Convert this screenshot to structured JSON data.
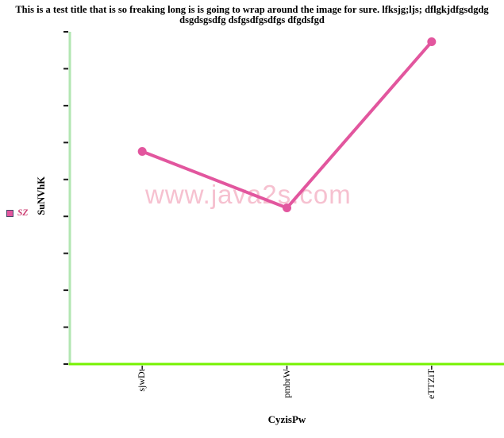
{
  "title": "This is a test title that is so freaking long is is going to wrap around the image for sure. lfksjg;ljs; dflgkjdfgsdgdg dsgdsgsdfg dsfgsdfgsdfgs dfgdsfgd",
  "watermark": "www.java2s.com",
  "legend": {
    "label": "SZ"
  },
  "axes": {
    "x_title": "CyzisPw",
    "y_title": "SuNVhK"
  },
  "chart_data": {
    "type": "line",
    "title": "This is a test title that is so freaking long is is going to wrap around the image for sure. lfksjg;ljs; dflgkjdfgsdgdg dsgdsgsdfg dsfgsdfgsdfgs dfgdsfgd",
    "xlabel": "CyzisPw",
    "ylabel": "SuNVhK",
    "categories": [
      "sjwDt",
      "pmbrW",
      "eTTZiT"
    ],
    "series": [
      {
        "name": "SZ",
        "values": [
          0.64,
          0.47,
          0.97
        ]
      }
    ],
    "ylim": [
      0,
      1
    ],
    "y_ticks_count": 10,
    "y_tick_labels_visible": false,
    "x_tick_label_rotation": -90,
    "grid": false,
    "legend_position": "left",
    "marker": "circle"
  },
  "colors": {
    "series": "#e2569e",
    "x_axis": "#76f200",
    "y_axis": "#b2e6b2",
    "tick": "#1a1a1a",
    "watermark": "#f6c1d0",
    "legend_text": "#cc3f73",
    "legend_swatch_border": "#4a4a6a",
    "title_text": "#000000",
    "background": "#ffffff"
  }
}
